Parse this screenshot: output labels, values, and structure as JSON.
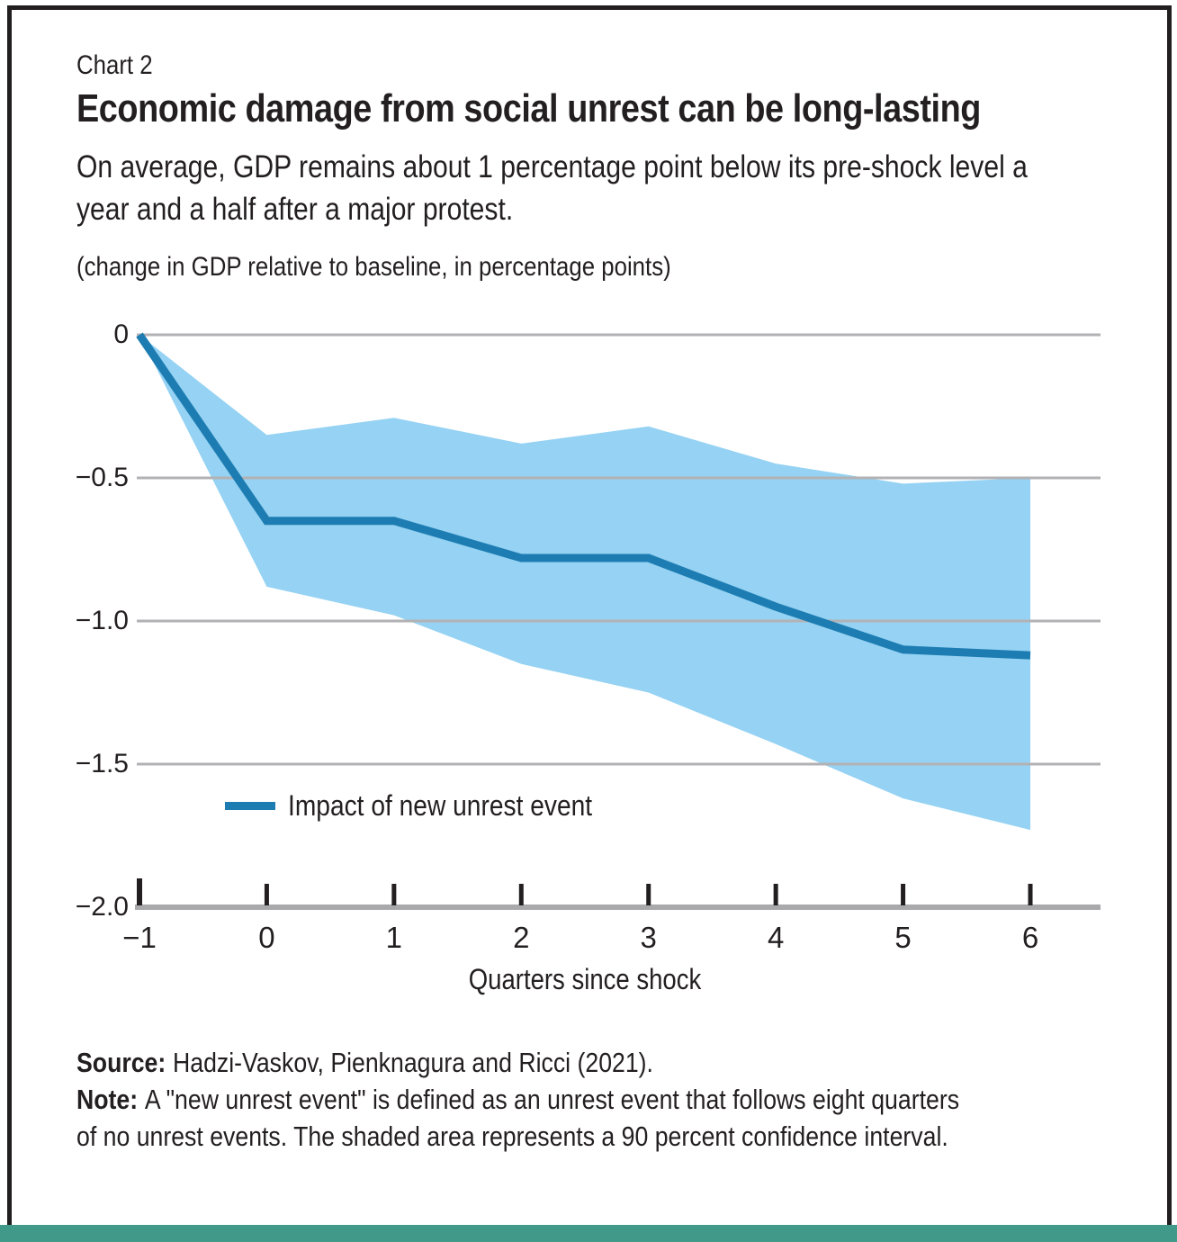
{
  "page": {
    "background": "#ffffff",
    "frame_color": "#231f20",
    "accent_bar_color": "#41998a",
    "text_color": "#231f20"
  },
  "header": {
    "kicker": "Chart 2",
    "title": "Economic damage from social unrest can be long-lasting",
    "subtitle_line1": "On average, GDP remains about 1 percentage point below its pre-shock level a",
    "subtitle_line2": "year and a half after a major protest.",
    "unit_note": "(change in GDP relative to baseline, in percentage points)"
  },
  "chart_data": {
    "type": "line",
    "title": "Economic damage from social unrest can be long-lasting",
    "x": [
      -1,
      0,
      1,
      2,
      3,
      4,
      5,
      6
    ],
    "series": [
      {
        "name": "Impact of new unrest event",
        "values": [
          0,
          -0.65,
          -0.65,
          -0.78,
          -0.78,
          -0.95,
          -1.1,
          -1.12
        ]
      }
    ],
    "confidence_band": {
      "label": "90 percent confidence interval",
      "upper": [
        0,
        -0.35,
        -0.29,
        -0.38,
        -0.32,
        -0.45,
        -0.52,
        -0.5
      ],
      "lower": [
        0,
        -0.88,
        -0.98,
        -1.15,
        -1.25,
        -1.43,
        -1.62,
        -1.73
      ]
    },
    "xlabel": "Quarters since shock",
    "ylabel": "",
    "xlim": [
      -1,
      6
    ],
    "ylim": [
      -2.0,
      0
    ],
    "yticks": [
      0,
      -0.5,
      -1.0,
      -1.5,
      -2.0
    ],
    "ytick_labels": [
      "0",
      "−0.5",
      "−1.0",
      "−1.5",
      "−2.0"
    ],
    "xticks": [
      -1,
      0,
      1,
      2,
      3,
      4,
      5,
      6
    ],
    "xtick_labels": [
      "−1",
      "0",
      "1",
      "2",
      "3",
      "4",
      "5",
      "6"
    ],
    "grid": "horizontal",
    "legend_position": "inside-bottom-left",
    "legend_label": "Impact of new unrest event",
    "colors": {
      "line": "#1d7db2",
      "band": "#95d2f3",
      "grid": "#b2b2b4",
      "axis": "#a9a9ab",
      "tick": "#231f20"
    }
  },
  "footer": {
    "source_label": "Source:",
    "source_text": "Hadzi-Vaskov, Pienknagura and Ricci (2021).",
    "note_label": "Note:",
    "note_text_line1": "A \"new unrest event\" is defined as an unrest event that follows eight quarters",
    "note_text_line2": "of no unrest events. The shaded area represents a 90 percent confidence interval."
  }
}
